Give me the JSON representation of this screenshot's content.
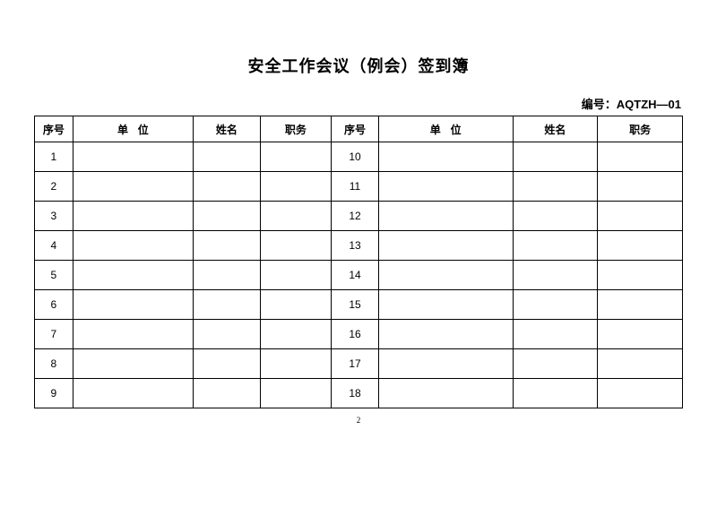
{
  "title": "安全工作会议（例会）签到簿",
  "code_label": "编号：AQTZH—01",
  "headers": {
    "seq": "序号",
    "unit": "单位",
    "name": "姓名",
    "duty": "职务"
  },
  "rows": [
    {
      "left_no": "1",
      "right_no": "10"
    },
    {
      "left_no": "2",
      "right_no": "11"
    },
    {
      "left_no": "3",
      "right_no": "12"
    },
    {
      "left_no": "4",
      "right_no": "13"
    },
    {
      "left_no": "5",
      "right_no": "14"
    },
    {
      "left_no": "6",
      "right_no": "15"
    },
    {
      "left_no": "7",
      "right_no": "16"
    },
    {
      "left_no": "8",
      "right_no": "17"
    },
    {
      "left_no": "9",
      "right_no": "18"
    }
  ],
  "page_number": "2",
  "colors": {
    "background": "#ffffff",
    "text": "#000000",
    "border": "#000000"
  },
  "fonts": {
    "title_pt": 18,
    "code_pt": 13,
    "header_pt": 12,
    "cell_pt": 12,
    "page_no_pt": 9
  }
}
